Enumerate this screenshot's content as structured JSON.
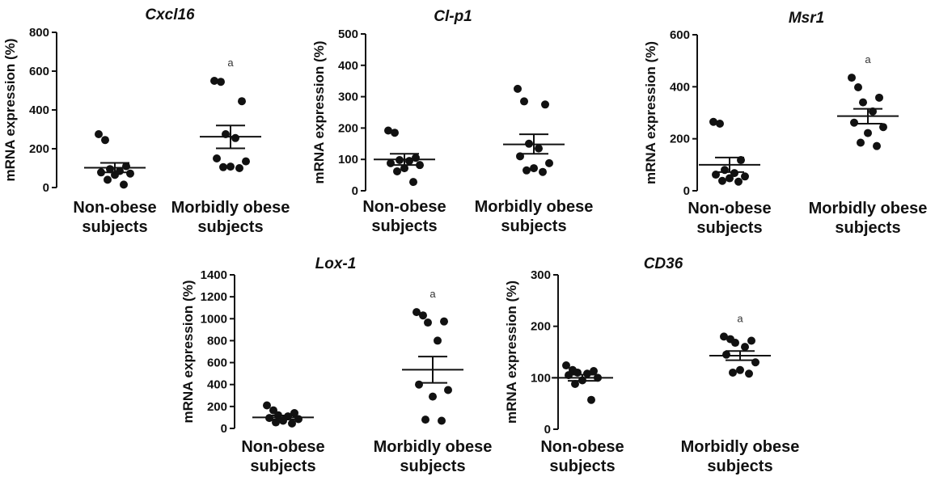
{
  "chart_data": [
    {
      "type": "scatter",
      "title": "Cxcl16",
      "ylabel": "mRNA expression (%)",
      "ylim": [
        0,
        800
      ],
      "yticks": [
        0,
        200,
        400,
        600,
        800
      ],
      "annotation": "a",
      "groups": [
        {
          "label_lines": [
            "Non-obese",
            "subjects"
          ],
          "mean": 102,
          "sem_low": 78,
          "sem_high": 127,
          "values": [
            275,
            245,
            110,
            95,
            85,
            78,
            72,
            65,
            40,
            15
          ]
        },
        {
          "label_lines": [
            "Morbidly obese",
            "subjects"
          ],
          "mean": 262,
          "sem_low": 202,
          "sem_high": 320,
          "values": [
            550,
            545,
            445,
            275,
            255,
            150,
            135,
            108,
            105,
            100
          ]
        }
      ]
    },
    {
      "type": "scatter",
      "title": "Cl-p1",
      "ylabel": "mRNA expression (%)",
      "ylim": [
        0,
        500
      ],
      "yticks": [
        0,
        100,
        200,
        300,
        400,
        500
      ],
      "annotation": "",
      "groups": [
        {
          "label_lines": [
            "Non-obese",
            "subjects"
          ],
          "mean": 100,
          "sem_low": 82,
          "sem_high": 118,
          "values": [
            192,
            185,
            105,
            98,
            95,
            88,
            82,
            72,
            62,
            28
          ]
        },
        {
          "label_lines": [
            "Morbidly obese",
            "subjects"
          ],
          "mean": 148,
          "sem_low": 118,
          "sem_high": 180,
          "values": [
            325,
            285,
            275,
            150,
            135,
            110,
            88,
            72,
            65,
            60
          ]
        }
      ]
    },
    {
      "type": "scatter",
      "title": "Msr1",
      "ylabel": "mRNA expression (%)",
      "ylim": [
        0,
        600
      ],
      "yticks": [
        0,
        200,
        400,
        600
      ],
      "annotation": "a",
      "groups": [
        {
          "label_lines": [
            "Non-obese",
            "subjects"
          ],
          "mean": 100,
          "sem_low": 72,
          "sem_high": 128,
          "values": [
            265,
            258,
            118,
            80,
            68,
            62,
            55,
            48,
            38,
            35
          ]
        },
        {
          "label_lines": [
            "Morbidly obese",
            "subjects"
          ],
          "mean": 287,
          "sem_low": 258,
          "sem_high": 315,
          "values": [
            435,
            398,
            358,
            340,
            305,
            262,
            245,
            222,
            185,
            172
          ]
        }
      ]
    },
    {
      "type": "scatter",
      "title": "Lox-1",
      "ylabel": "mRNA expression (%)",
      "ylim": [
        0,
        1400
      ],
      "yticks": [
        0,
        200,
        400,
        600,
        800,
        1000,
        1200,
        1400
      ],
      "annotation": "a",
      "groups": [
        {
          "label_lines": [
            "Non-obese",
            "subjects"
          ],
          "mean": 100,
          "sem_low": 82,
          "sem_high": 118,
          "values": [
            210,
            165,
            140,
            120,
            110,
            95,
            85,
            70,
            55,
            45
          ]
        },
        {
          "label_lines": [
            "Morbidly obese",
            "subjects"
          ],
          "mean": 535,
          "sem_low": 415,
          "sem_high": 655,
          "values": [
            1060,
            1030,
            975,
            965,
            800,
            400,
            350,
            290,
            80,
            70
          ]
        }
      ]
    },
    {
      "type": "scatter",
      "title": "CD36",
      "ylabel": "mRNA expression (%)",
      "ylim": [
        0,
        300
      ],
      "yticks": [
        0,
        100,
        200,
        300
      ],
      "annotation": "a",
      "groups": [
        {
          "label_lines": [
            "Non-obese",
            "subjects"
          ],
          "mean": 100,
          "sem_low": 94,
          "sem_high": 106,
          "values": [
            124,
            115,
            113,
            110,
            108,
            105,
            100,
            95,
            88,
            57
          ]
        },
        {
          "label_lines": [
            "Morbidly obese",
            "subjects"
          ],
          "mean": 143,
          "sem_low": 134,
          "sem_high": 152,
          "values": [
            180,
            175,
            172,
            168,
            160,
            145,
            130,
            115,
            110,
            108
          ]
        }
      ]
    }
  ]
}
